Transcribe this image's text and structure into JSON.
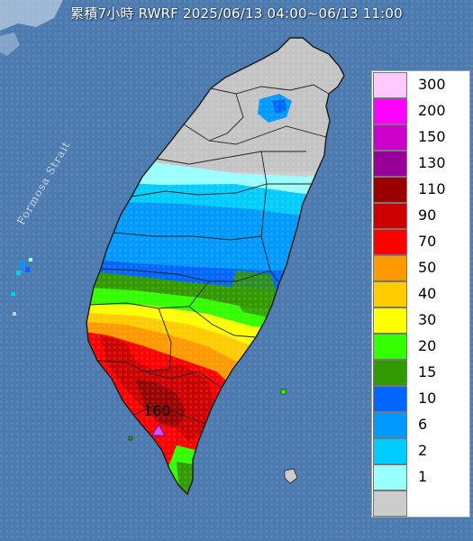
{
  "title": "累積7小時 RWRF 2025/06/13 04:00~06/13 11:00",
  "strait_label": "Formosa Strait",
  "max_value_label": "160",
  "legend": {
    "items": [
      {
        "label": "300",
        "color": "#ffc8ff"
      },
      {
        "label": "200",
        "color": "#ff00ff"
      },
      {
        "label": "150",
        "color": "#cc00cc"
      },
      {
        "label": "130",
        "color": "#990099"
      },
      {
        "label": "110",
        "color": "#990000"
      },
      {
        "label": "90",
        "color": "#cc0000"
      },
      {
        "label": "70",
        "color": "#ff0000"
      },
      {
        "label": "50",
        "color": "#ff9900"
      },
      {
        "label": "40",
        "color": "#ffcc00"
      },
      {
        "label": "30",
        "color": "#ffff00"
      },
      {
        "label": "20",
        "color": "#33ff00"
      },
      {
        "label": "15",
        "color": "#339900"
      },
      {
        "label": "10",
        "color": "#0066ff"
      },
      {
        "label": "6",
        "color": "#0099ff"
      },
      {
        "label": "2",
        "color": "#00ccff"
      },
      {
        "label": "1",
        "color": "#99ffff"
      },
      {
        "label": "",
        "color": "#cccccc"
      }
    ]
  }
}
